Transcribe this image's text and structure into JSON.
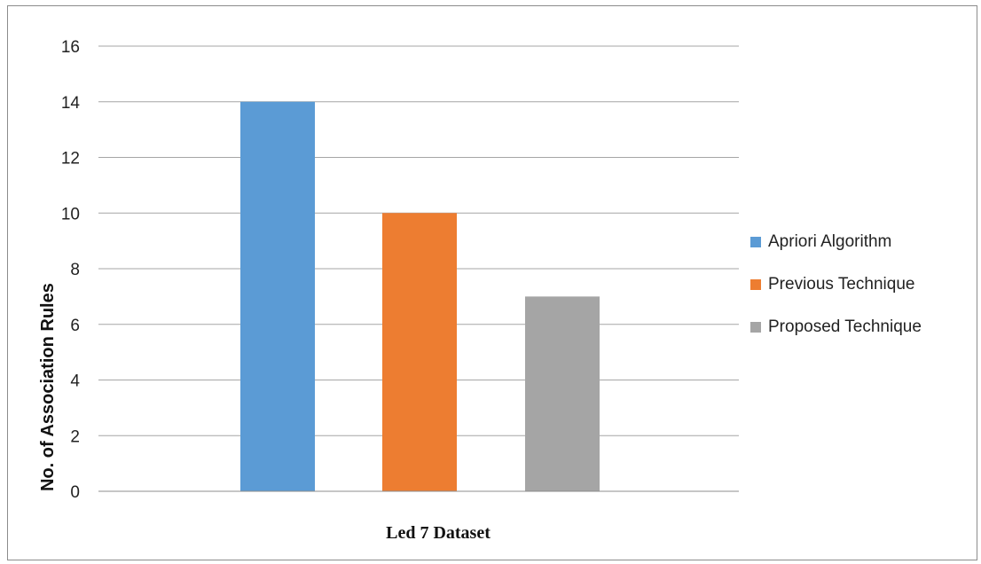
{
  "chart_data": {
    "type": "bar",
    "title": "",
    "xlabel": "Led 7 Dataset",
    "ylabel": "No. of Association Rules",
    "categories": [
      "Led 7 Dataset"
    ],
    "series": [
      {
        "name": "Apriori Algorithm",
        "values": [
          14
        ],
        "color": "#5b9bd5"
      },
      {
        "name": "Previous Technique",
        "values": [
          10
        ],
        "color": "#ed7d31"
      },
      {
        "name": "Proposed Technique",
        "values": [
          7
        ],
        "color": "#a5a5a5"
      }
    ],
    "ylim": [
      0,
      16
    ],
    "yticks": [
      "0",
      "2",
      "4",
      "6",
      "8",
      "10",
      "12",
      "14",
      "16"
    ],
    "grid": true,
    "legend_position": "right"
  }
}
